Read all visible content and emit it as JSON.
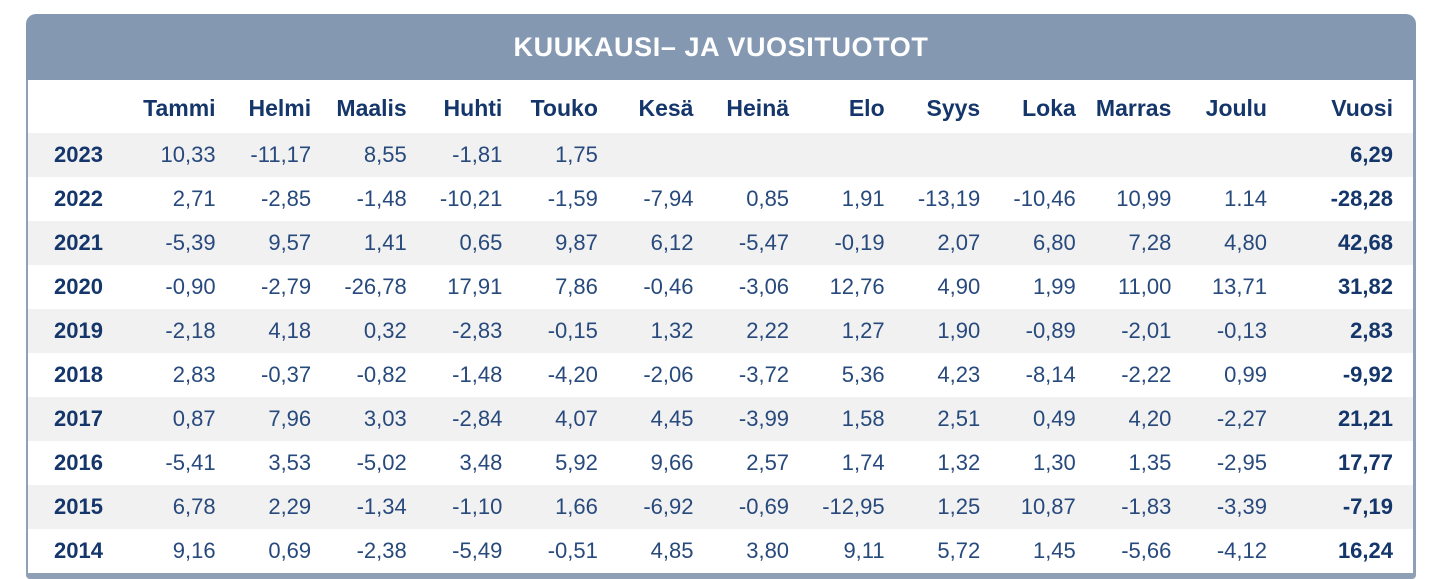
{
  "header": {
    "title": "KUUKAUSI– JA VUOSITUOTOT"
  },
  "colors": {
    "banner": "#8498b2",
    "border": "#8fa0b6",
    "heading_text": "#14366a",
    "value_text": "#27497c",
    "stripe": "#f1f1f2",
    "title_text": "#ffffff"
  },
  "chart_data": {
    "type": "table",
    "title": "KUUKAUSI– JA VUOSITUOTOT",
    "columns": [
      "Tammi",
      "Helmi",
      "Maalis",
      "Huhti",
      "Touko",
      "Kesä",
      "Heinä",
      "Elo",
      "Syys",
      "Loka",
      "Marras",
      "Joulu",
      "Vuosi"
    ],
    "rows": [
      {
        "year": "2023",
        "values": [
          "10,33",
          "-11,17",
          "8,55",
          "-1,81",
          "1,75",
          "",
          "",
          "",
          "",
          "",
          "",
          "",
          "6,29"
        ]
      },
      {
        "year": "2022",
        "values": [
          "2,71",
          "-2,85",
          "-1,48",
          "-10,21",
          "-1,59",
          "-7,94",
          "0,85",
          "1,91",
          "-13,19",
          "-10,46",
          "10,99",
          "1.14",
          "-28,28"
        ]
      },
      {
        "year": "2021",
        "values": [
          "-5,39",
          "9,57",
          "1,41",
          "0,65",
          "9,87",
          "6,12",
          "-5,47",
          "-0,19",
          "2,07",
          "6,80",
          "7,28",
          "4,80",
          "42,68"
        ]
      },
      {
        "year": "2020",
        "values": [
          "-0,90",
          "-2,79",
          "-26,78",
          "17,91",
          "7,86",
          "-0,46",
          "-3,06",
          "12,76",
          "4,90",
          "1,99",
          "11,00",
          "13,71",
          "31,82"
        ]
      },
      {
        "year": "2019",
        "values": [
          "-2,18",
          "4,18",
          "0,32",
          "-2,83",
          "-0,15",
          "1,32",
          "2,22",
          "1,27",
          "1,90",
          "-0,89",
          "-2,01",
          "-0,13",
          "2,83"
        ]
      },
      {
        "year": "2018",
        "values": [
          "2,83",
          "-0,37",
          "-0,82",
          "-1,48",
          "-4,20",
          "-2,06",
          "-3,72",
          "5,36",
          "4,23",
          "-8,14",
          "-2,22",
          "0,99",
          "-9,92"
        ]
      },
      {
        "year": "2017",
        "values": [
          "0,87",
          "7,96",
          "3,03",
          "-2,84",
          "4,07",
          "4,45",
          "-3,99",
          "1,58",
          "2,51",
          "0,49",
          "4,20",
          "-2,27",
          "21,21"
        ]
      },
      {
        "year": "2016",
        "values": [
          "-5,41",
          "3,53",
          "-5,02",
          "3,48",
          "5,92",
          "9,66",
          "2,57",
          "1,74",
          "1,32",
          "1,30",
          "1,35",
          "-2,95",
          "17,77"
        ]
      },
      {
        "year": "2015",
        "values": [
          "6,78",
          "2,29",
          "-1,34",
          "-1,10",
          "1,66",
          "-6,92",
          "-0,69",
          "-12,95",
          "1,25",
          "10,87",
          "-1,83",
          "-3,39",
          "-7,19"
        ]
      },
      {
        "year": "2014",
        "values": [
          "9,16",
          "0,69",
          "-2,38",
          "-5,49",
          "-0,51",
          "4,85",
          "3,80",
          "9,11",
          "5,72",
          "1,45",
          "-5,66",
          "-4,12",
          "16,24"
        ]
      }
    ]
  }
}
